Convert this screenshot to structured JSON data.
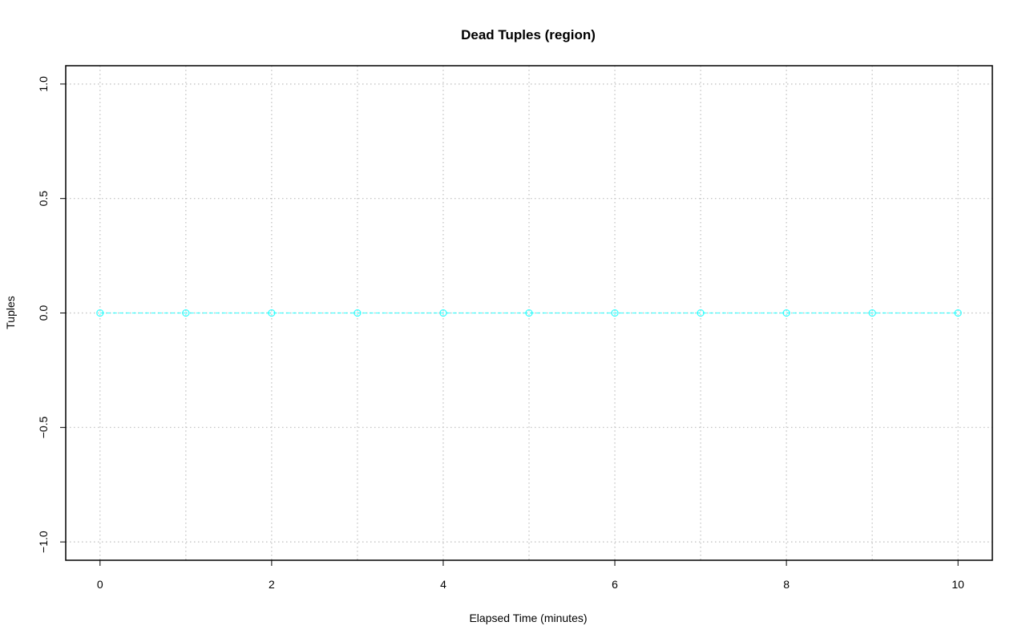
{
  "chart_data": {
    "type": "line",
    "title": "Dead Tuples (region)",
    "xlabel": "Elapsed Time (minutes)",
    "ylabel": "Tuples",
    "x": [
      0,
      1,
      2,
      3,
      4,
      5,
      6,
      7,
      8,
      9,
      10
    ],
    "series": [
      {
        "values": [
          0,
          0,
          0,
          0,
          0,
          0,
          0,
          0,
          0,
          0,
          0
        ],
        "color": "#00ffff"
      }
    ],
    "xlim": [
      -0.4,
      10.4
    ],
    "ylim": [
      -1.08,
      1.08
    ],
    "xticks": [
      0,
      2,
      4,
      6,
      8,
      10
    ],
    "xtick_labels": [
      "0",
      "2",
      "4",
      "6",
      "8",
      "10"
    ],
    "yticks": [
      -1.0,
      -0.5,
      0.0,
      0.5,
      1.0
    ],
    "ytick_labels": [
      "−1.0",
      "−0.5",
      "0.0",
      "0.5",
      "1.0"
    ],
    "xgrid": [
      0,
      1,
      2,
      3,
      4,
      5,
      6,
      7,
      8,
      9,
      10
    ],
    "grid": true,
    "grid_style": "dotted",
    "grid_color": "#bebebe",
    "marker": "open-circle",
    "line_style": "dashed"
  }
}
